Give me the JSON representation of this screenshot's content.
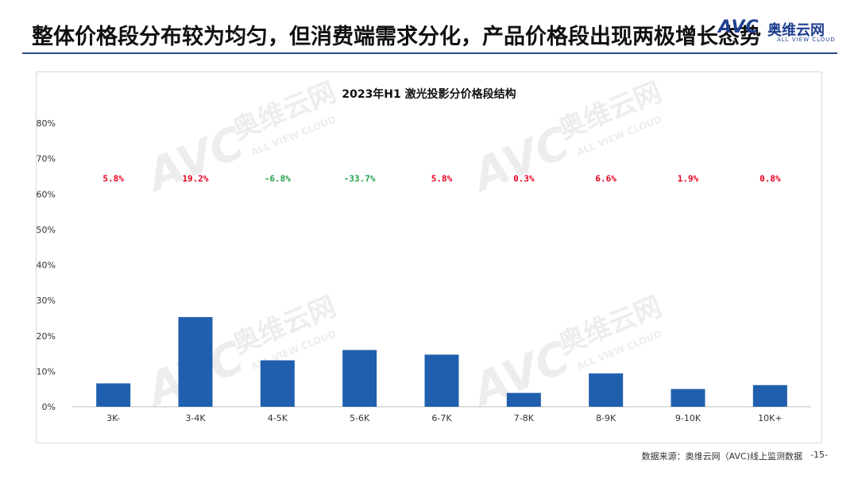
{
  "header": {
    "title": "整体价格段分布较为均匀，但消费端需求分化，产品价格段出现两极增长态势",
    "brand_mark": "AVC",
    "brand_name": "奥维云网",
    "brand_tagline": "ALL VIEW CLOUD"
  },
  "colors": {
    "bar": "#1f5fae",
    "growth_positive": "#e6001f",
    "growth_negative": "#22a04b",
    "title_rule": "#2e4a8a"
  },
  "watermark": {
    "mark": "AVC",
    "cn": "奥维云网",
    "en": "ALL VIEW CLOUD"
  },
  "chart_data": {
    "type": "bar",
    "title": "2023年H1 激光投影分价格段结构",
    "categories": [
      "3K-",
      "3-4K",
      "4-5K",
      "5-6K",
      "6-7K",
      "7-8K",
      "8-9K",
      "9-10K",
      "10K+"
    ],
    "values": [
      6.6,
      25.3,
      13.1,
      16.0,
      14.7,
      3.9,
      9.4,
      5.0,
      6.1
    ],
    "value_unit": "%",
    "growth_labels": [
      "5.8%",
      "19.2%",
      "-6.8%",
      "-33.7%",
      "5.8%",
      "0.3%",
      "6.6%",
      "1.9%",
      "0.8%"
    ],
    "growth_values": [
      5.8,
      19.2,
      -6.8,
      -33.7,
      5.8,
      0.3,
      6.6,
      1.9,
      0.8
    ],
    "ylim": [
      0,
      80
    ],
    "y_ticks": [
      "0%",
      "10%",
      "20%",
      "30%",
      "40%",
      "50%",
      "60%",
      "70%",
      "80%"
    ],
    "y_tick_values": [
      0,
      10,
      20,
      30,
      40,
      50,
      60,
      70,
      80
    ],
    "xlabel": "",
    "ylabel": "",
    "grid": false,
    "legend": "none"
  },
  "footer": {
    "source": "数据来源：奥维云网（AVC)线上监测数据",
    "page": "-15-"
  }
}
